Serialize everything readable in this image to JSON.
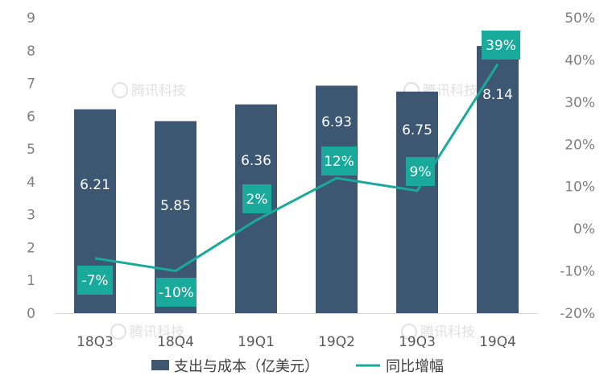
{
  "chart_data": {
    "type": "bar",
    "categories": [
      "18Q3",
      "18Q4",
      "19Q1",
      "19Q2",
      "19Q3",
      "19Q4"
    ],
    "series": [
      {
        "name": "支出与成本（亿美元）",
        "type": "bar",
        "axis": "left",
        "values": [
          6.21,
          5.85,
          6.36,
          6.93,
          6.75,
          8.14
        ],
        "labels": [
          "6.21",
          "5.85",
          "6.36",
          "6.93",
          "6.75",
          "8.14"
        ],
        "color": "#3d5773"
      },
      {
        "name": "同比增幅",
        "type": "line",
        "axis": "right",
        "values": [
          -7,
          -10,
          2,
          12,
          9,
          39
        ],
        "labels": [
          "-7%",
          "-10%",
          "2%",
          "12%",
          "9%",
          "39%"
        ],
        "color": "#1aaa9b"
      }
    ],
    "y_left": {
      "min": 0,
      "max": 9,
      "ticks": [
        "0",
        "1",
        "2",
        "3",
        "4",
        "5",
        "6",
        "7",
        "8",
        "9"
      ]
    },
    "y_right": {
      "min": -20,
      "max": 50,
      "ticks": [
        "-20%",
        "-10%",
        "0%",
        "10%",
        "20%",
        "30%",
        "40%",
        "50%"
      ]
    },
    "grid": false,
    "legend_position": "bottom",
    "watermark": "腾讯科技"
  }
}
